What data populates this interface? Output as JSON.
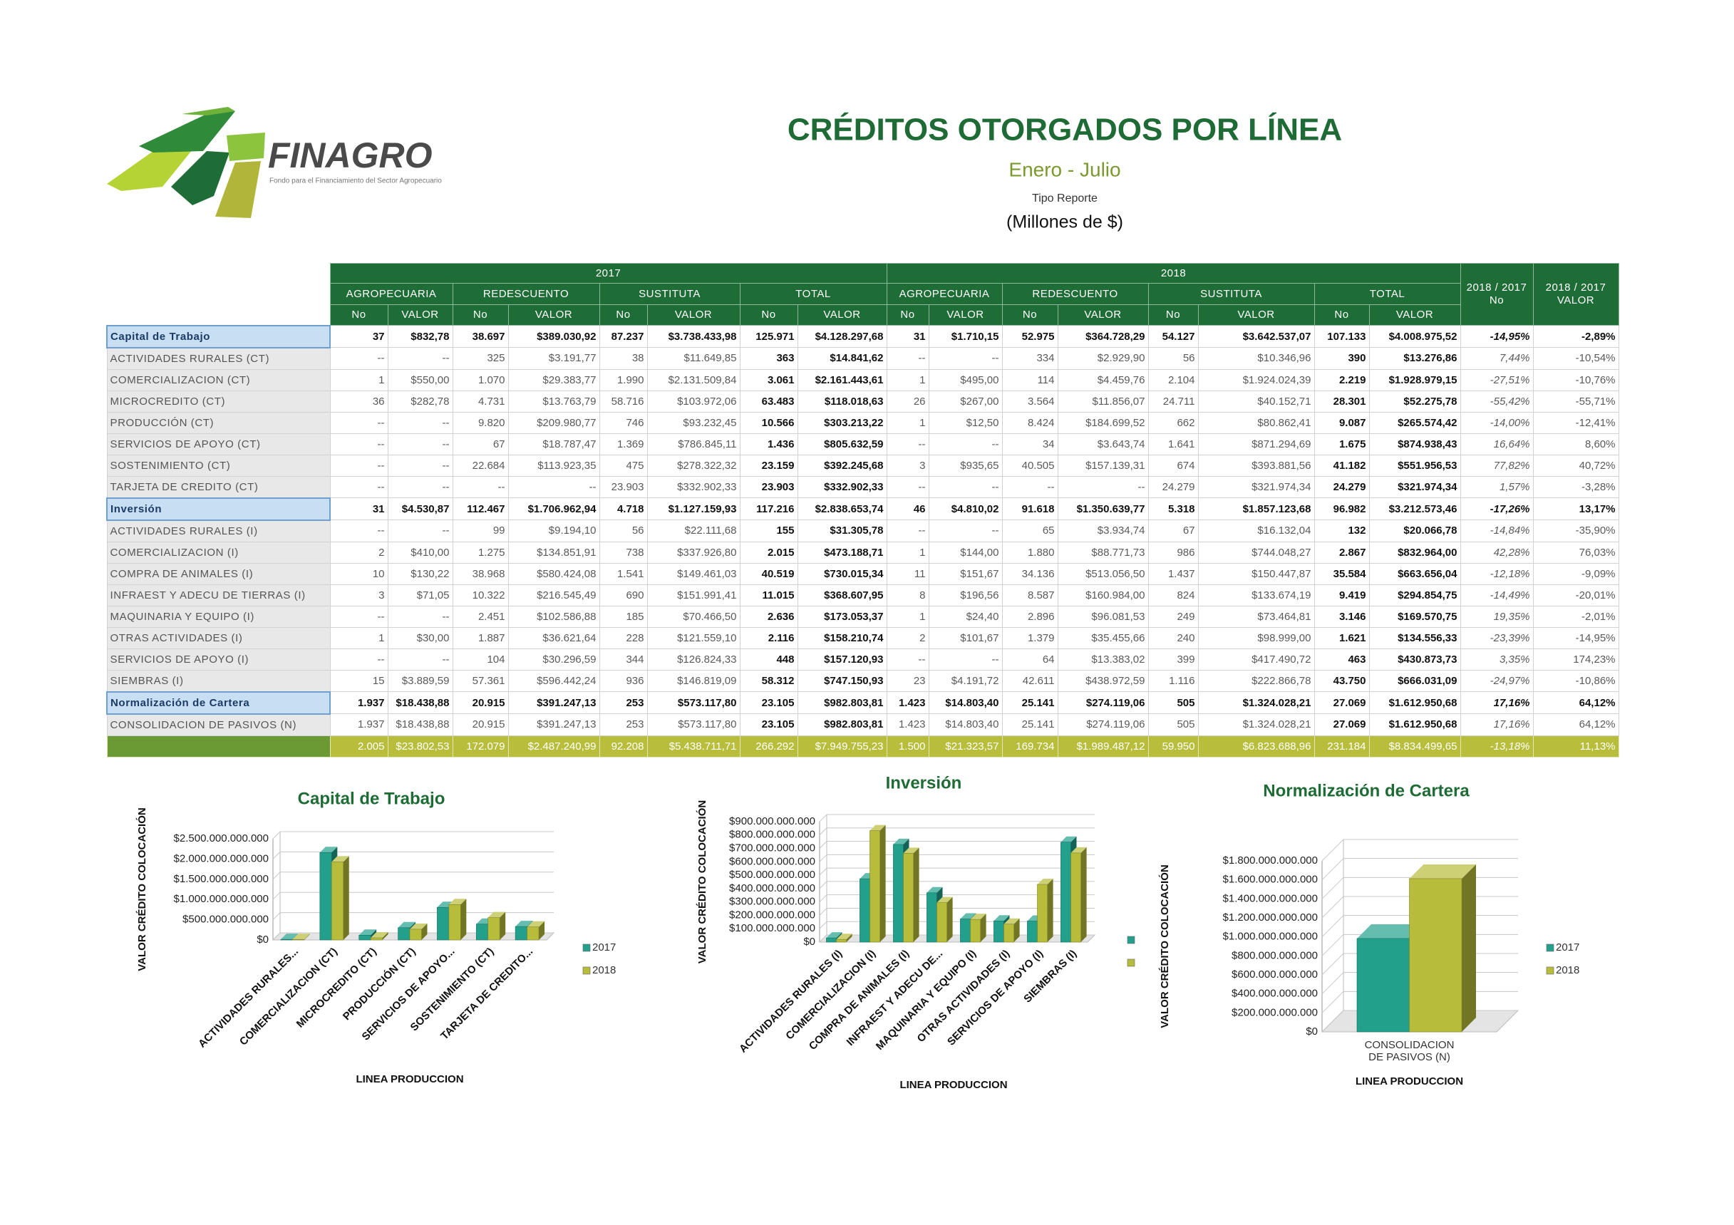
{
  "header": {
    "logo": "FINAGRO",
    "logo_tagline": "Fondo para el Financiamiento del Sector Agropecuario",
    "title": "CRÉDITOS OTORGADOS POR LÍNEA",
    "subtitle": "Enero - Julio",
    "report_type": "Tipo Reporte",
    "units": "(Millones de $)"
  },
  "table": {
    "header": {
      "years": [
        "2017",
        "2018"
      ],
      "groups": [
        "AGROPECUARIA",
        "REDESCUENTO",
        "SUSTITUTA",
        "TOTAL"
      ],
      "sub": [
        "No",
        "VALOR"
      ],
      "ratios": [
        "2018 / 2017 No",
        "2018 / 2017 VALOR"
      ]
    },
    "sections": [
      {
        "label": "Capital de Trabajo",
        "cells": [
          "37",
          "$832,78",
          "38.697",
          "$389.030,92",
          "87.237",
          "$3.738.433,98",
          "125.971",
          "$4.128.297,68",
          "31",
          "$1.710,15",
          "52.975",
          "$364.728,29",
          "54.127",
          "$3.642.537,07",
          "107.133",
          "$4.008.975,52",
          "-14,95%",
          "-2,89%"
        ],
        "rows": [
          {
            "label": "ACTIVIDADES RURALES (CT)",
            "cells": [
              "--",
              "--",
              "325",
              "$3.191,77",
              "38",
              "$11.649,85",
              "363",
              "$14.841,62",
              "--",
              "--",
              "334",
              "$2.929,90",
              "56",
              "$10.346,96",
              "390",
              "$13.276,86",
              "7,44%",
              "-10,54%"
            ]
          },
          {
            "label": "COMERCIALIZACION (CT)",
            "cells": [
              "1",
              "$550,00",
              "1.070",
              "$29.383,77",
              "1.990",
              "$2.131.509,84",
              "3.061",
              "$2.161.443,61",
              "1",
              "$495,00",
              "114",
              "$4.459,76",
              "2.104",
              "$1.924.024,39",
              "2.219",
              "$1.928.979,15",
              "-27,51%",
              "-10,76%"
            ]
          },
          {
            "label": "MICROCREDITO (CT)",
            "cells": [
              "36",
              "$282,78",
              "4.731",
              "$13.763,79",
              "58.716",
              "$103.972,06",
              "63.483",
              "$118.018,63",
              "26",
              "$267,00",
              "3.564",
              "$11.856,07",
              "24.711",
              "$40.152,71",
              "28.301",
              "$52.275,78",
              "-55,42%",
              "-55,71%"
            ]
          },
          {
            "label": "PRODUCCIÓN (CT)",
            "cells": [
              "--",
              "--",
              "9.820",
              "$209.980,77",
              "746",
              "$93.232,45",
              "10.566",
              "$303.213,22",
              "1",
              "$12,50",
              "8.424",
              "$184.699,52",
              "662",
              "$80.862,41",
              "9.087",
              "$265.574,42",
              "-14,00%",
              "-12,41%"
            ]
          },
          {
            "label": "SERVICIOS DE APOYO (CT)",
            "cells": [
              "--",
              "--",
              "67",
              "$18.787,47",
              "1.369",
              "$786.845,11",
              "1.436",
              "$805.632,59",
              "--",
              "--",
              "34",
              "$3.643,74",
              "1.641",
              "$871.294,69",
              "1.675",
              "$874.938,43",
              "16,64%",
              "8,60%"
            ]
          },
          {
            "label": "SOSTENIMIENTO (CT)",
            "cells": [
              "--",
              "--",
              "22.684",
              "$113.923,35",
              "475",
              "$278.322,32",
              "23.159",
              "$392.245,68",
              "3",
              "$935,65",
              "40.505",
              "$157.139,31",
              "674",
              "$393.881,56",
              "41.182",
              "$551.956,53",
              "77,82%",
              "40,72%"
            ]
          },
          {
            "label": "TARJETA DE CREDITO (CT)",
            "cells": [
              "--",
              "--",
              "--",
              "--",
              "23.903",
              "$332.902,33",
              "23.903",
              "$332.902,33",
              "--",
              "--",
              "--",
              "--",
              "24.279",
              "$321.974,34",
              "24.279",
              "$321.974,34",
              "1,57%",
              "-3,28%"
            ]
          }
        ]
      },
      {
        "label": "Inversión",
        "cells": [
          "31",
          "$4.530,87",
          "112.467",
          "$1.706.962,94",
          "4.718",
          "$1.127.159,93",
          "117.216",
          "$2.838.653,74",
          "46",
          "$4.810,02",
          "91.618",
          "$1.350.639,77",
          "5.318",
          "$1.857.123,68",
          "96.982",
          "$3.212.573,46",
          "-17,26%",
          "13,17%"
        ],
        "rows": [
          {
            "label": "ACTIVIDADES RURALES (I)",
            "cells": [
              "--",
              "--",
              "99",
              "$9.194,10",
              "56",
              "$22.111,68",
              "155",
              "$31.305,78",
              "--",
              "--",
              "65",
              "$3.934,74",
              "67",
              "$16.132,04",
              "132",
              "$20.066,78",
              "-14,84%",
              "-35,90%"
            ]
          },
          {
            "label": "COMERCIALIZACION (I)",
            "cells": [
              "2",
              "$410,00",
              "1.275",
              "$134.851,91",
              "738",
              "$337.926,80",
              "2.015",
              "$473.188,71",
              "1",
              "$144,00",
              "1.880",
              "$88.771,73",
              "986",
              "$744.048,27",
              "2.867",
              "$832.964,00",
              "42,28%",
              "76,03%"
            ]
          },
          {
            "label": "COMPRA DE ANIMALES (I)",
            "cells": [
              "10",
              "$130,22",
              "38.968",
              "$580.424,08",
              "1.541",
              "$149.461,03",
              "40.519",
              "$730.015,34",
              "11",
              "$151,67",
              "34.136",
              "$513.056,50",
              "1.437",
              "$150.447,87",
              "35.584",
              "$663.656,04",
              "-12,18%",
              "-9,09%"
            ]
          },
          {
            "label": "INFRAEST Y ADECU DE TIERRAS (I)",
            "cells": [
              "3",
              "$71,05",
              "10.322",
              "$216.545,49",
              "690",
              "$151.991,41",
              "11.015",
              "$368.607,95",
              "8",
              "$196,56",
              "8.587",
              "$160.984,00",
              "824",
              "$133.674,19",
              "9.419",
              "$294.854,75",
              "-14,49%",
              "-20,01%"
            ]
          },
          {
            "label": "MAQUINARIA Y EQUIPO (I)",
            "cells": [
              "--",
              "--",
              "2.451",
              "$102.586,88",
              "185",
              "$70.466,50",
              "2.636",
              "$173.053,37",
              "1",
              "$24,40",
              "2.896",
              "$96.081,53",
              "249",
              "$73.464,81",
              "3.146",
              "$169.570,75",
              "19,35%",
              "-2,01%"
            ]
          },
          {
            "label": "OTRAS ACTIVIDADES (I)",
            "cells": [
              "1",
              "$30,00",
              "1.887",
              "$36.621,64",
              "228",
              "$121.559,10",
              "2.116",
              "$158.210,74",
              "2",
              "$101,67",
              "1.379",
              "$35.455,66",
              "240",
              "$98.999,00",
              "1.621",
              "$134.556,33",
              "-23,39%",
              "-14,95%"
            ]
          },
          {
            "label": "SERVICIOS DE APOYO  (I)",
            "cells": [
              "--",
              "--",
              "104",
              "$30.296,59",
              "344",
              "$126.824,33",
              "448",
              "$157.120,93",
              "--",
              "--",
              "64",
              "$13.383,02",
              "399",
              "$417.490,72",
              "463",
              "$430.873,73",
              "3,35%",
              "174,23%"
            ]
          },
          {
            "label": "SIEMBRAS (I)",
            "cells": [
              "15",
              "$3.889,59",
              "57.361",
              "$596.442,24",
              "936",
              "$146.819,09",
              "58.312",
              "$747.150,93",
              "23",
              "$4.191,72",
              "42.611",
              "$438.972,59",
              "1.116",
              "$222.866,78",
              "43.750",
              "$666.031,09",
              "-24,97%",
              "-10,86%"
            ]
          }
        ]
      },
      {
        "label": "Normalización de Cartera",
        "cells": [
          "1.937",
          "$18.438,88",
          "20.915",
          "$391.247,13",
          "253",
          "$573.117,80",
          "23.105",
          "$982.803,81",
          "1.423",
          "$14.803,40",
          "25.141",
          "$274.119,06",
          "505",
          "$1.324.028,21",
          "27.069",
          "$1.612.950,68",
          "17,16%",
          "64,12%"
        ],
        "rows": [
          {
            "label": "CONSOLIDACION DE PASIVOS (N)",
            "cells": [
              "1.937",
              "$18.438,88",
              "20.915",
              "$391.247,13",
              "253",
              "$573.117,80",
              "23.105",
              "$982.803,81",
              "1.423",
              "$14.803,40",
              "25.141",
              "$274.119,06",
              "505",
              "$1.324.028,21",
              "27.069",
              "$1.612.950,68",
              "17,16%",
              "64,12%"
            ]
          }
        ]
      }
    ],
    "total": [
      "2.005",
      "$23.802,53",
      "172.079",
      "$2.487.240,99",
      "92.208",
      "$5.438.711,71",
      "266.292",
      "$7.949.755,23",
      "1.500",
      "$21.323,57",
      "169.734",
      "$1.989.487,12",
      "59.950",
      "$6.823.688,96",
      "231.184",
      "$8.834.499,65",
      "-13,18%",
      "11,13%"
    ]
  },
  "chart_data": [
    {
      "type": "bar",
      "title": "Capital de Trabajo",
      "x_label": "LINEA PRODUCCION",
      "y_label": "VALOR CRÉDITO COLOCACIÓN",
      "categories": [
        "ACTIVIDADES RURALES...",
        "COMERCIALIZACION (CT)",
        "MICROCREDITO (CT)",
        "PRODUCCIÓN (CT)",
        "SERVICIOS DE APOYO...",
        "SOSTENIMIENTO (CT)",
        "TARJETA DE CREDITO..."
      ],
      "series": [
        {
          "name": "2017",
          "color": "#22a08c",
          "values": [
            14841620000,
            2161443610000,
            118018630000,
            303213220000,
            805632590000,
            392245680000,
            332902330000
          ]
        },
        {
          "name": "2018",
          "color": "#b7bc3a",
          "values": [
            13276860000,
            1928979150000,
            52275780000,
            265574420000,
            874938430000,
            551956530000,
            321974340000
          ]
        }
      ],
      "ylim": [
        0,
        2500000000000
      ],
      "yticks": [
        {
          "value": 0,
          "label": "$0"
        },
        {
          "value": 500000000000,
          "label": "$500.000.000.000"
        },
        {
          "value": 1000000000000,
          "label": "$1.000.000.000.000"
        },
        {
          "value": 1500000000000,
          "label": "$1.500.000.000.000"
        },
        {
          "value": 2000000000000,
          "label": "$2.000.000.000.000"
        },
        {
          "value": 2500000000000,
          "label": "$2.500.000.000.000"
        }
      ],
      "grid": true
    },
    {
      "type": "bar",
      "title": "Inversión",
      "x_label": "LINEA PRODUCCION",
      "y_label": "VALOR CRÉDITO COLOCACIÓN",
      "categories": [
        "ACTIVIDADES RURALES (I)",
        "COMERCIALIZACION (I)",
        "COMPRA DE ANIMALES (I)",
        "INFRAEST Y ADECU DE...",
        "MAQUINARIA Y EQUIPO (I)",
        "OTRAS ACTIVIDADES (I)",
        "SERVICIOS DE APOYO  (I)",
        "SIEMBRAS (I)"
      ],
      "series": [
        {
          "color": "#22a08c",
          "values": [
            31305780000,
            473188710000,
            730015340000,
            368607950000,
            173053370000,
            158210740000,
            157120930000,
            747150930000
          ]
        },
        {
          "color": "#b7bc3a",
          "values": [
            20066780000,
            832964000000,
            663656040000,
            294854750000,
            169570750000,
            134556330000,
            430873730000,
            666031090000
          ]
        }
      ],
      "ylim": [
        0,
        900000000000
      ],
      "yticks": [
        {
          "value": 0,
          "label": "$0"
        },
        {
          "value": 100000000000,
          "label": "$100.000.000.000"
        },
        {
          "value": 200000000000,
          "label": "$200.000.000.000"
        },
        {
          "value": 300000000000,
          "label": "$300.000.000.000"
        },
        {
          "value": 400000000000,
          "label": "$400.000.000.000"
        },
        {
          "value": 500000000000,
          "label": "$500.000.000.000"
        },
        {
          "value": 600000000000,
          "label": "$600.000.000.000"
        },
        {
          "value": 700000000000,
          "label": "$700.000.000.000"
        },
        {
          "value": 800000000000,
          "label": "$800.000.000.000"
        },
        {
          "value": 900000000000,
          "label": "$900.000.000.000"
        }
      ],
      "grid": true
    },
    {
      "type": "bar",
      "title": "Normalización de Cartera",
      "x_label": "LINEA PRODUCCION",
      "y_label": "VALOR CRÉDITO COLOCACIÓN",
      "categories": [
        "CONSOLIDACION DE PASIVOS (N)"
      ],
      "series": [
        {
          "name": "2017",
          "color": "#22a08c",
          "values": [
            982803810000
          ]
        },
        {
          "name": "2018",
          "color": "#b7bc3a",
          "values": [
            1612950680000
          ]
        }
      ],
      "ylim": [
        0,
        1800000000000
      ],
      "yticks": [
        {
          "value": 0,
          "label": "$0"
        },
        {
          "value": 200000000000,
          "label": "$200.000.000.000"
        },
        {
          "value": 400000000000,
          "label": "$400.000.000.000"
        },
        {
          "value": 600000000000,
          "label": "$600.000.000.000"
        },
        {
          "value": 800000000000,
          "label": "$800.000.000.000"
        },
        {
          "value": 1000000000000,
          "label": "$1.000.000.000.000"
        },
        {
          "value": 1200000000000,
          "label": "$1.200.000.000.000"
        },
        {
          "value": 1400000000000,
          "label": "$1.400.000.000.000"
        },
        {
          "value": 1600000000000,
          "label": "$1.600.000.000.000"
        },
        {
          "value": 1800000000000,
          "label": "$1.800.000.000.000"
        }
      ],
      "grid": true
    }
  ]
}
